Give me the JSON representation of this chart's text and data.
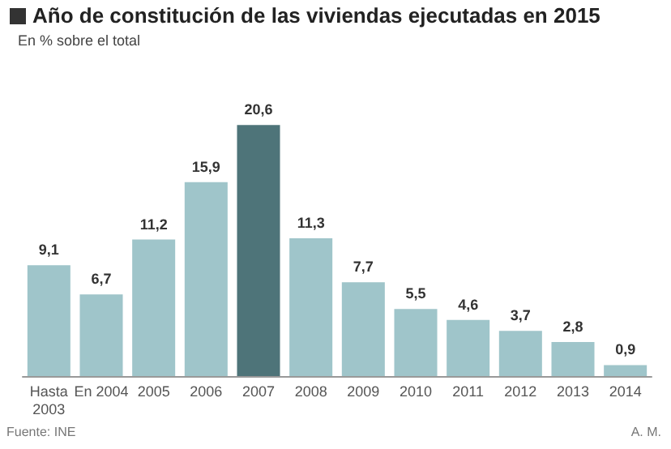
{
  "chart_data": {
    "type": "bar",
    "title": "Año de constitución de las viviendas ejecutadas en 2015",
    "subtitle": "En % sobre el total",
    "categories": [
      "Hasta\n2003",
      "En 2004",
      "2005",
      "2006",
      "2007",
      "2008",
      "2009",
      "2010",
      "2011",
      "2012",
      "2013",
      "2014"
    ],
    "values": [
      9.1,
      6.7,
      11.2,
      15.9,
      20.6,
      11.3,
      7.7,
      5.5,
      4.6,
      3.7,
      2.8,
      0.9
    ],
    "colors": [
      "#9fc5ca",
      "#9fc5ca",
      "#9fc5ca",
      "#9fc5ca",
      "#4e7479",
      "#9fc5ca",
      "#9fc5ca",
      "#9fc5ca",
      "#9fc5ca",
      "#9fc5ca",
      "#9fc5ca",
      "#9fc5ca"
    ],
    "value_labels": [
      "9,1",
      "6,7",
      "11,2",
      "15,9",
      "20,6",
      "11,3",
      "7,7",
      "5,5",
      "4,6",
      "3,7",
      "2,8",
      "0,9"
    ],
    "annotations": [
      "Fuente: INE",
      "A. M."
    ],
    "grid": false
  }
}
